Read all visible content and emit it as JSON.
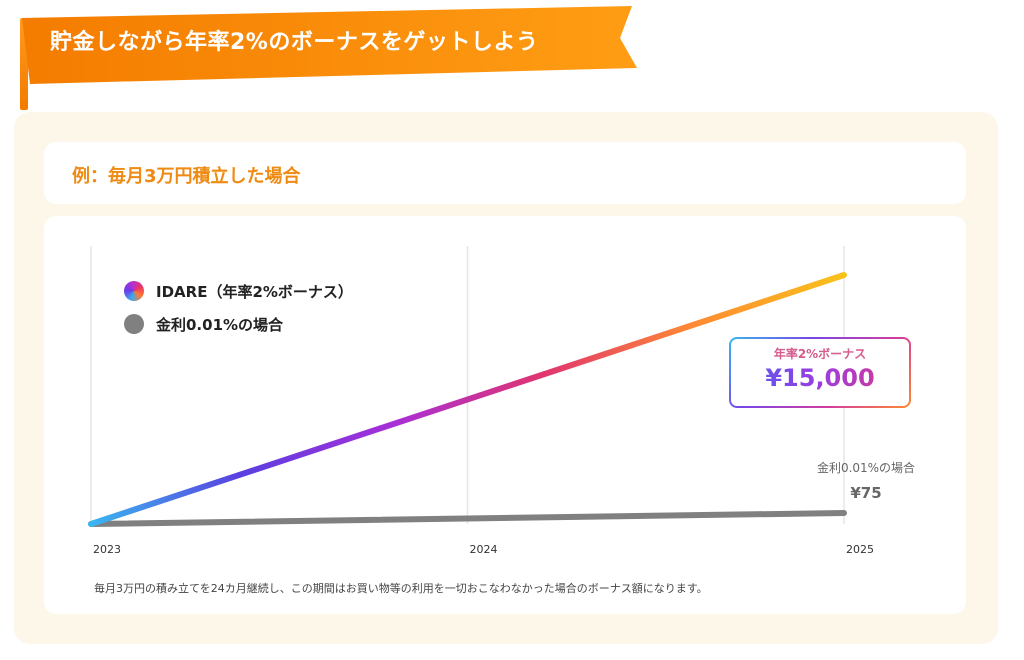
{
  "banner": {
    "title": "貯金しながら年率2%のボーナスをゲットしよう",
    "color": "#f58a00"
  },
  "example": {
    "title": "例：毎月3万円積立した場合",
    "color": "#ef8a12"
  },
  "legend": {
    "items": [
      {
        "label": "IDARE（年率2%ボーナス）",
        "icon": "gradient-circle"
      },
      {
        "label": "金利0.01%の場合",
        "icon": "gray-circle"
      }
    ]
  },
  "callout": {
    "label": "年率2%ボーナス",
    "value": "¥15,000"
  },
  "bank_note": {
    "label": "金利0.01%の場合",
    "value": "¥75"
  },
  "footnote": "毎月3万円の積み立てを24カ月継続し、この期間はお買い物等の利用を一切おこなわなかった場合のボーナス額になります。",
  "chart_data": {
    "type": "line",
    "title": "",
    "xlabel": "",
    "ylabel": "",
    "categories": [
      "2023",
      "2024",
      "2025"
    ],
    "grid": true,
    "legend_position": "top-left",
    "series": [
      {
        "name": "IDARE（年率2%ボーナス）",
        "x": [
          "2023",
          "2025"
        ],
        "y": [
          0,
          15000
        ],
        "colors": [
          "#3ab6f0",
          "#5b3fe0",
          "#a72fd8",
          "#e0356f",
          "#ff8a33",
          "#f8c21a"
        ]
      },
      {
        "name": "金利0.01%の場合",
        "x": [
          "2023",
          "2025"
        ],
        "y": [
          0,
          75
        ],
        "colors": [
          "#808080"
        ]
      }
    ],
    "annotations": [
      "年率2%ボーナス ¥15,000",
      "金利0.01%の場合 ¥75"
    ]
  }
}
